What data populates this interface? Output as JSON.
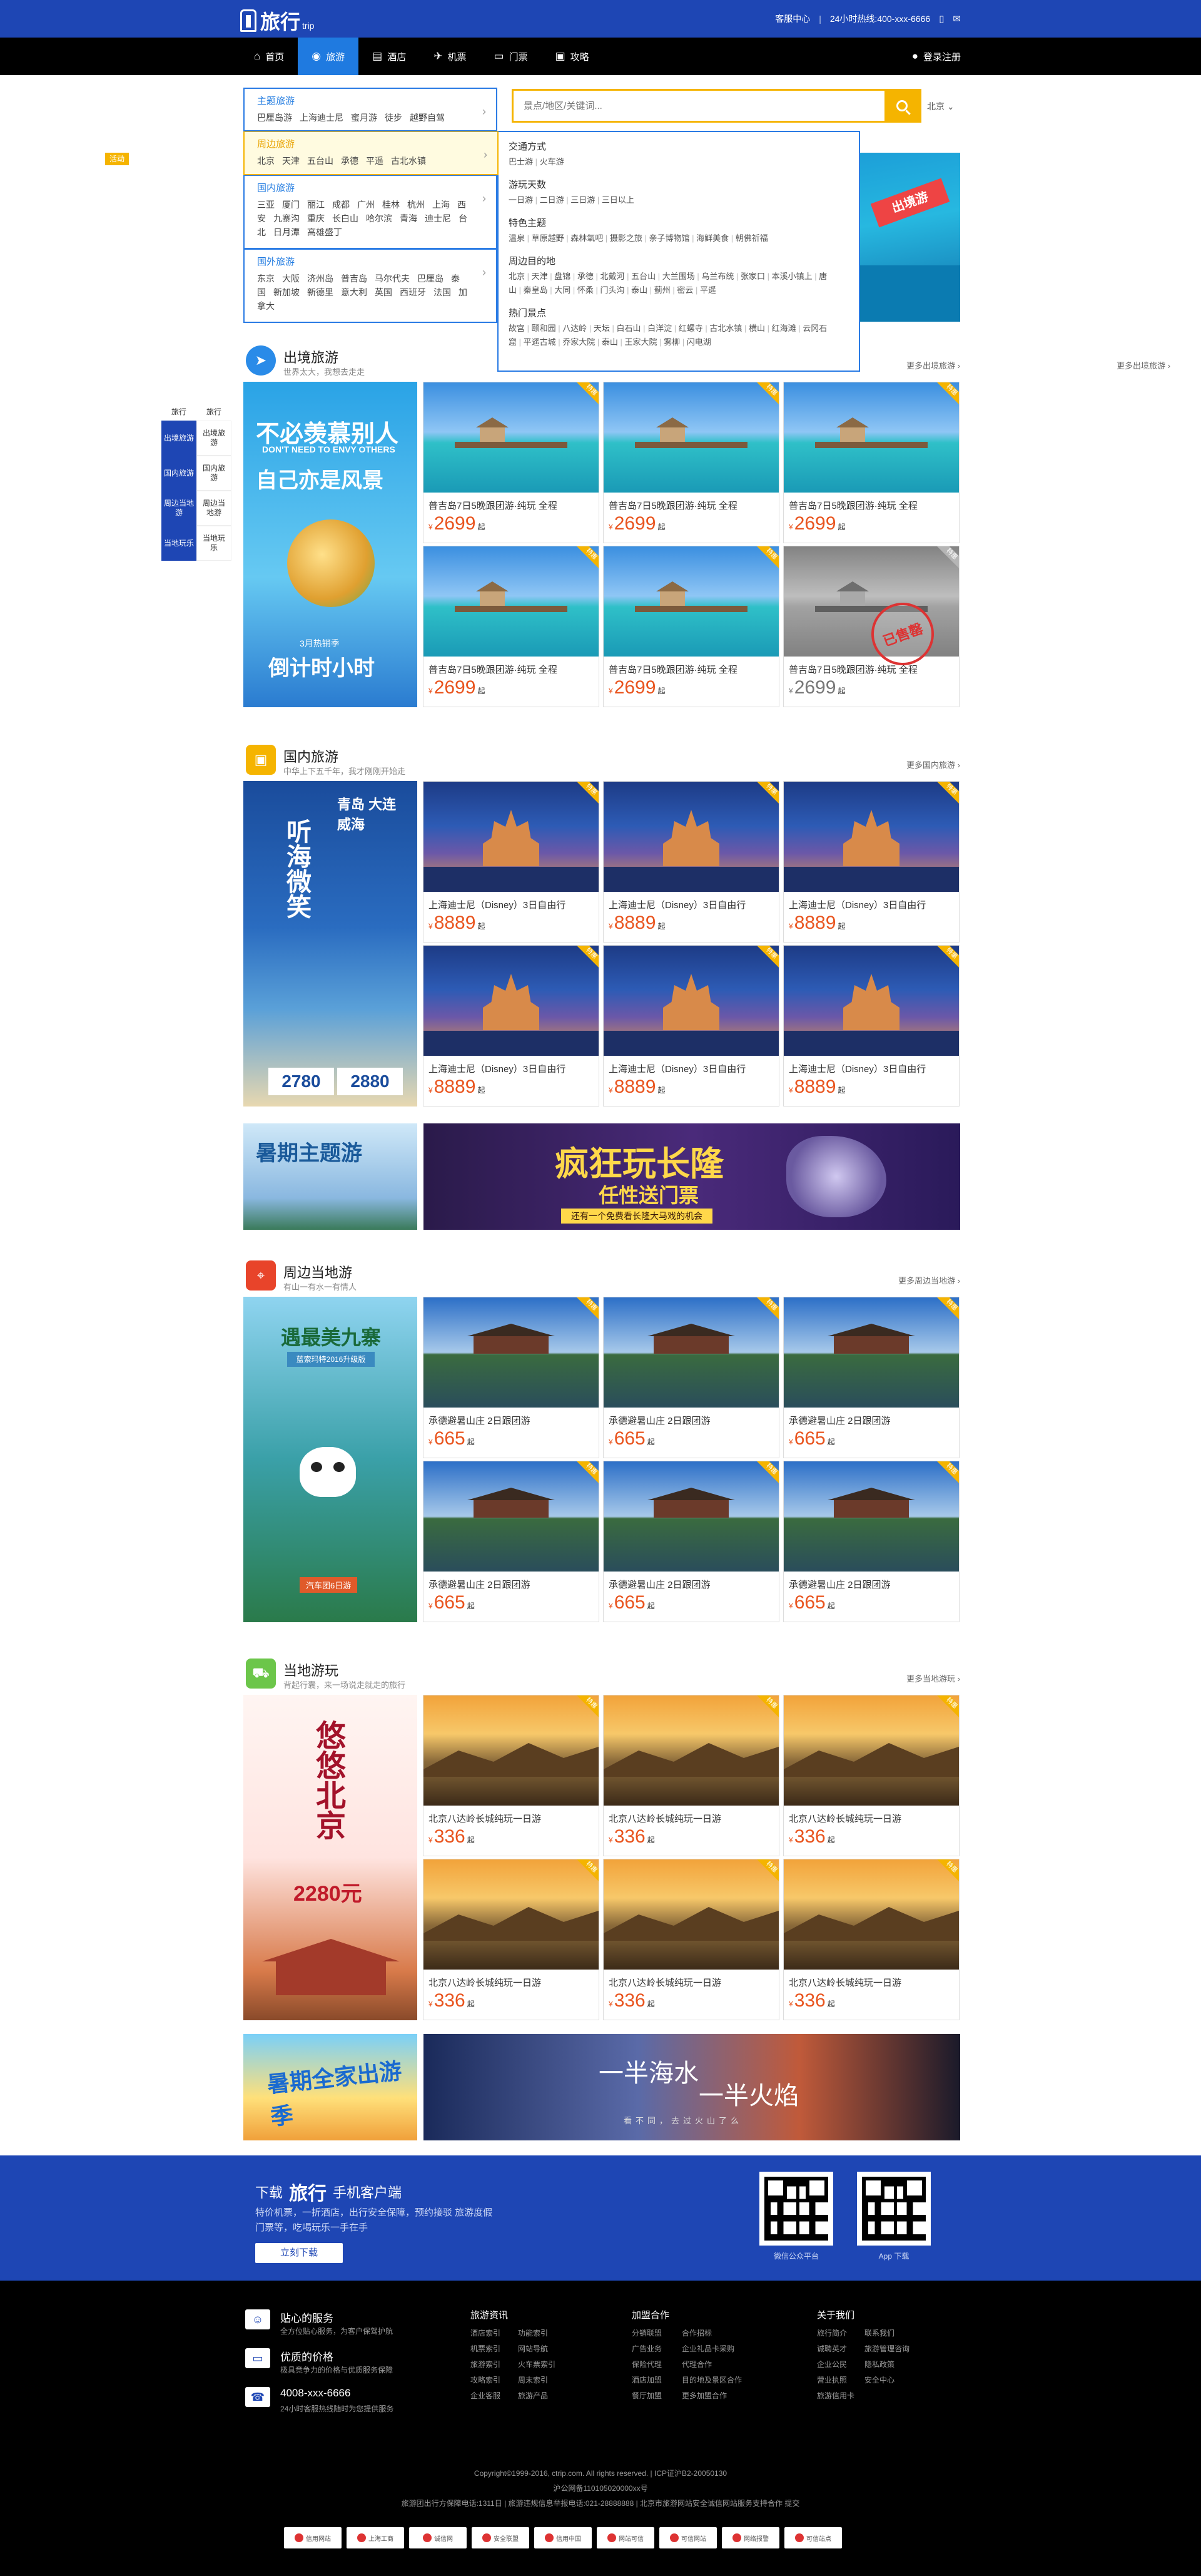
{
  "header": {
    "brand": "旅行",
    "brand_sub": "trip",
    "member_center": "客服中心",
    "hotline": "24小时热线:400-xxx-6666",
    "mobile_icon": "mobile-icon",
    "wechat_icon": "wechat-icon"
  },
  "nav": {
    "items": [
      {
        "label": "首页",
        "icon": "home-icon"
      },
      {
        "label": "旅游",
        "icon": "globe-icon"
      },
      {
        "label": "酒店",
        "icon": "hotel-icon"
      },
      {
        "label": "机票",
        "icon": "plane-icon"
      },
      {
        "label": "门票",
        "icon": "ticket-icon"
      },
      {
        "label": "攻略",
        "icon": "guide-icon"
      }
    ],
    "login": "登录注册"
  },
  "categories": [
    {
      "title": "主题旅游",
      "links": [
        "巴厘岛游",
        "上海迪士尼",
        "蜜月游",
        "徒步",
        "越野自驾"
      ]
    },
    {
      "title": "周边旅游",
      "links": [
        "北京",
        "天津",
        "五台山",
        "承德",
        "平遥",
        "古北水镇"
      ]
    },
    {
      "title": "国内旅游",
      "links": [
        "三亚",
        "厦门",
        "丽江",
        "成都",
        "广州",
        "桂林",
        "杭州",
        "上海",
        "西安",
        "九寨沟",
        "重庆",
        "长白山",
        "哈尔滨",
        "青海",
        "迪士尼",
        "台北",
        "日月潭",
        "高雄盛丁"
      ]
    },
    {
      "title": "国外旅游",
      "links": [
        "东京",
        "大阪",
        "济州岛",
        "普吉岛",
        "马尔代夫",
        "巴厘岛",
        "泰国",
        "新加坡",
        "新德里",
        "意大利",
        "英国",
        "西班牙",
        "法国",
        "加拿大"
      ]
    }
  ],
  "mega": [
    {
      "title": "交通方式",
      "links": [
        "巴士游",
        "火车游"
      ]
    },
    {
      "title": "游玩天数",
      "links": [
        "一日游",
        "二日游",
        "三日游",
        "三日以上"
      ]
    },
    {
      "title": "特色主题",
      "links": [
        "温泉",
        "草原越野",
        "森林氧吧",
        "摄影之旅",
        "亲子博物馆",
        "海鲜美食",
        "朝佛祈福"
      ]
    },
    {
      "title": "周边目的地",
      "links": [
        "北京",
        "天津",
        "盘锦",
        "承德",
        "北戴河",
        "五台山",
        "大兰围场",
        "乌兰布统",
        "张家口",
        "本溪小镇上",
        "唐山",
        "秦皇岛",
        "大同",
        "怀柔",
        "门头沟",
        "泰山",
        "蓟州",
        "密云",
        "平遥"
      ]
    },
    {
      "title": "热门景点",
      "links": [
        "故宫",
        "颐和园",
        "八达岭",
        "天坛",
        "白石山",
        "白洋淀",
        "红螺寺",
        "古北水镇",
        "横山",
        "红海滩",
        "云冈石窟",
        "平遥古城",
        "乔家大院",
        "泰山",
        "王家大院",
        "雾柳",
        "闪电湖"
      ]
    }
  ],
  "search": {
    "placeholder": "景点/地区/关键词...",
    "city": "北京"
  },
  "small_tag": "活动",
  "hero_ribbon": "出境游",
  "side_nav": {
    "heads": [
      "旅行",
      "旅行"
    ],
    "cells": [
      "出境旅游",
      "出境旅游",
      "国内旅游",
      "国内旅游",
      "周边当地游",
      "周边当地游",
      "当地玩乐",
      "当地玩乐"
    ]
  },
  "sections": [
    {
      "title": "出境旅游",
      "sub": "世界太大，我想去走走",
      "more": "更多出境旅游",
      "promo": {
        "h1": "不必羡慕别人",
        "h2": "DON'T NEED TO ENVY OTHERS",
        "h3": "自己亦是风景",
        "h4": "倒计时小时",
        "h5": "3月热销季"
      },
      "products": [
        {
          "name": "普吉岛7日5晚跟团游·纯玩 全程",
          "price": "2699",
          "sold": false
        },
        {
          "name": "普吉岛7日5晚跟团游·纯玩 全程",
          "price": "2699",
          "sold": false
        },
        {
          "name": "普吉岛7日5晚跟团游·纯玩 全程",
          "price": "2699",
          "sold": false
        },
        {
          "name": "普吉岛7日5晚跟团游·纯玩 全程",
          "price": "2699",
          "sold": false
        },
        {
          "name": "普吉岛7日5晚跟团游·纯玩 全程",
          "price": "2699",
          "sold": false
        },
        {
          "name": "普吉岛7日5晚跟团游·纯玩 全程",
          "price": "2699",
          "sold": true
        }
      ]
    },
    {
      "title": "国内旅游",
      "sub": "中华上下五千年，我才刚刚开始走",
      "more": "更多国内旅游",
      "promo": {
        "v1": "听海微笑",
        "tag": "青岛 大连 威海",
        "p1": "2780",
        "p2": "2880"
      },
      "products": [
        {
          "name": "上海迪士尼（Disney）3日自由行",
          "price": "8889"
        },
        {
          "name": "上海迪士尼（Disney）3日自由行",
          "price": "8889"
        },
        {
          "name": "上海迪士尼（Disney）3日自由行",
          "price": "8889"
        },
        {
          "name": "上海迪士尼（Disney）3日自由行",
          "price": "8889"
        },
        {
          "name": "上海迪士尼（Disney）3日自由行",
          "price": "8889"
        },
        {
          "name": "上海迪士尼（Disney）3日自由行",
          "price": "8889"
        }
      ]
    },
    {
      "title": "周边当地游",
      "sub": "有山一有水一有情人",
      "more": "更多周边当地游",
      "promo": {
        "t1": "遇最美九寨",
        "t2": "蓝索玛特2016升级版",
        "t3": "汽车团6日游"
      },
      "products": [
        {
          "name": "承德避暑山庄 2日跟团游",
          "price": "665"
        },
        {
          "name": "承德避暑山庄 2日跟团游",
          "price": "665"
        },
        {
          "name": "承德避暑山庄 2日跟团游",
          "price": "665"
        },
        {
          "name": "承德避暑山庄 2日跟团游",
          "price": "665"
        },
        {
          "name": "承德避暑山庄 2日跟团游",
          "price": "665"
        },
        {
          "name": "承德避暑山庄 2日跟团游",
          "price": "665"
        }
      ]
    },
    {
      "title": "当地游玩",
      "sub": "背起行囊，来一场说走就走的旅行",
      "more": "更多当地游玩",
      "promo": {
        "t1": "悠悠北京",
        "price": "2280元"
      },
      "products": [
        {
          "name": "北京八达岭长城纯玩一日游",
          "price": "336"
        },
        {
          "name": "北京八达岭长城纯玩一日游",
          "price": "336"
        },
        {
          "name": "北京八达岭长城纯玩一日游",
          "price": "336"
        },
        {
          "name": "北京八达岭长城纯玩一日游",
          "price": "336"
        },
        {
          "name": "北京八达岭长城纯玩一日游",
          "price": "336"
        },
        {
          "name": "北京八达岭长城纯玩一日游",
          "price": "336"
        }
      ]
    }
  ],
  "price_currency": "¥",
  "price_suffix": "起",
  "badge": "特惠",
  "sold_stamp": "已售罄",
  "banners": {
    "row1_left": "暑期主题游",
    "row1_right": {
      "t1": "疯狂玩长隆",
      "t2": "任性送门票",
      "t3": "还有一个免费看长隆大马戏的机会"
    },
    "row2_left": "暑期全家出游季",
    "row2_right": {
      "t1": "一半海水",
      "t2": "一半火焰",
      "t3": "看不同，去过火山了么"
    }
  },
  "app": {
    "prefix": "下载",
    "brand": "旅行",
    "suffix": "手机客户端",
    "sub": "特价机票，一折酒店，出行安全保障，预约接驳 旅游度假门票等，吃喝玩乐一手在手",
    "button": "立刻下载",
    "qr1": "微信公众平台",
    "qr2": "App 下载"
  },
  "footer": {
    "features": [
      {
        "title": "贴心的服务",
        "desc": "全方位贴心服务，为客户保驾护航",
        "icon": "service-icon"
      },
      {
        "title": "优质的价格",
        "desc": "极具竞争力的价格与优质服务保障",
        "icon": "card-icon"
      },
      {
        "title": "4008-xxx-6666",
        "desc": "24小时客服热线随时为您提供服务",
        "icon": "phone-icon"
      }
    ],
    "columns": [
      {
        "title": "旅游资讯",
        "links": [
          "酒店索引",
          "机票索引",
          "旅游索引",
          "攻略索引",
          "企业客服",
          "旅游产品",
          "功能索引",
          "网站导航",
          "火车票索引",
          "周末索引"
        ]
      },
      {
        "title": "加盟合作",
        "links": [
          "分销联盟",
          "广告业务",
          "保险代理",
          "酒店加盟",
          "餐厅加盟",
          "合作招标",
          "企业礼品卡采购",
          "代理合作",
          "目的地及景区合作",
          "更多加盟合作"
        ]
      },
      {
        "title": "关于我们",
        "links": [
          "旅行简介",
          "诚聘英才",
          "企业公民",
          "营业执照",
          "旅游信用卡",
          "联系我们",
          "旅游管理咨询",
          "隐私政策",
          "安全中心"
        ]
      }
    ],
    "copyright": "Copyright©1999-2016, ctrip.com. All rights reserved. | ICP证沪B2-20050130",
    "record": "沪公网备110105020000xx号",
    "license": "旅游团出行方保障电话:1311日 | 旅游违规信息举报电话:021-28888888 | 北京市旅游网站安全诚信网站服务支持合作 提交",
    "badges": [
      "信用网站",
      "上海工商",
      "诚信网",
      "安全联盟",
      "信用中国",
      "网站可信",
      "可信网站",
      "网络报警",
      "可信站点"
    ]
  }
}
